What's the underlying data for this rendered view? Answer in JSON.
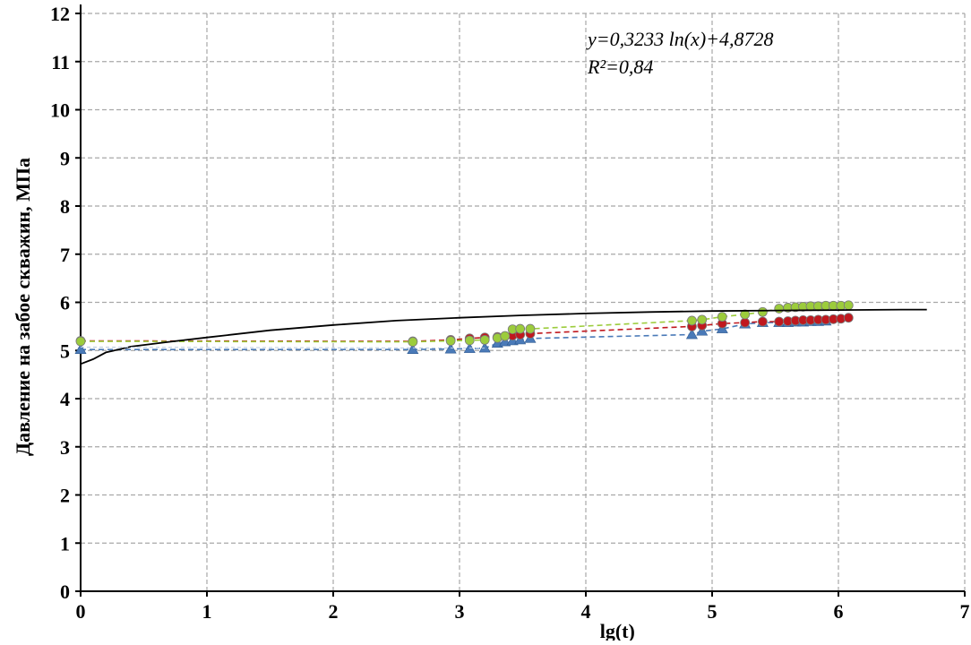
{
  "chart_data": {
    "type": "scatter",
    "xlabel": "lg(t)",
    "ylabel": "Давление на забое скважин, МПа",
    "xlim": [
      0,
      7
    ],
    "ylim": [
      0,
      12
    ],
    "x_ticks": [
      "0",
      "1",
      "2",
      "3",
      "4",
      "5",
      "6",
      "7"
    ],
    "y_ticks": [
      "0",
      "1",
      "2",
      "3",
      "4",
      "5",
      "6",
      "7",
      "8",
      "9",
      "10",
      "11",
      "12"
    ],
    "grid": true,
    "annotation": {
      "equation": "y=0,3233 ln(x)+4,8728",
      "r2": "R²=0,84"
    },
    "series": [
      {
        "marker": "triangle",
        "color": "#4a7ab8",
        "line": "dashed",
        "points": [
          [
            0.0,
            5.02
          ],
          [
            2.63,
            5.02
          ],
          [
            2.93,
            5.03
          ],
          [
            3.08,
            5.04
          ],
          [
            3.2,
            5.05
          ],
          [
            3.3,
            5.15
          ],
          [
            3.36,
            5.18
          ],
          [
            3.42,
            5.2
          ],
          [
            3.48,
            5.22
          ],
          [
            3.56,
            5.25
          ],
          [
            4.84,
            5.33
          ],
          [
            4.92,
            5.4
          ],
          [
            5.08,
            5.45
          ],
          [
            5.26,
            5.55
          ],
          [
            5.4,
            5.58
          ],
          [
            5.53,
            5.58
          ],
          [
            5.6,
            5.58
          ],
          [
            5.66,
            5.59
          ],
          [
            5.72,
            5.59
          ],
          [
            5.78,
            5.6
          ],
          [
            5.84,
            5.6
          ],
          [
            5.9,
            5.61
          ]
        ]
      },
      {
        "marker": "circle",
        "color": "#c0181e",
        "line": "dashed",
        "points": [
          [
            0.0,
            5.2
          ],
          [
            2.63,
            5.19
          ],
          [
            2.93,
            5.22
          ],
          [
            3.08,
            5.25
          ],
          [
            3.2,
            5.27
          ],
          [
            3.3,
            5.28
          ],
          [
            3.36,
            5.3
          ],
          [
            3.42,
            5.31
          ],
          [
            3.48,
            5.33
          ],
          [
            3.56,
            5.35
          ],
          [
            4.84,
            5.5
          ],
          [
            4.92,
            5.52
          ],
          [
            5.08,
            5.56
          ],
          [
            5.26,
            5.58
          ],
          [
            5.4,
            5.6
          ],
          [
            5.53,
            5.6
          ],
          [
            5.6,
            5.61
          ],
          [
            5.66,
            5.62
          ],
          [
            5.72,
            5.63
          ],
          [
            5.78,
            5.63
          ],
          [
            5.84,
            5.64
          ],
          [
            5.9,
            5.64
          ],
          [
            5.96,
            5.65
          ],
          [
            6.02,
            5.66
          ],
          [
            6.08,
            5.68
          ]
        ]
      },
      {
        "marker": "circle",
        "color": "#9ccc3c",
        "line": "dashed",
        "points": [
          [
            0.0,
            5.19
          ],
          [
            2.63,
            5.18
          ],
          [
            2.93,
            5.2
          ],
          [
            3.08,
            5.21
          ],
          [
            3.2,
            5.22
          ],
          [
            3.3,
            5.26
          ],
          [
            3.36,
            5.3
          ],
          [
            3.42,
            5.44
          ],
          [
            3.48,
            5.45
          ],
          [
            3.56,
            5.45
          ],
          [
            4.84,
            5.62
          ],
          [
            4.92,
            5.64
          ],
          [
            5.08,
            5.7
          ],
          [
            5.26,
            5.75
          ],
          [
            5.4,
            5.8
          ],
          [
            5.53,
            5.87
          ],
          [
            5.6,
            5.89
          ],
          [
            5.66,
            5.9
          ],
          [
            5.72,
            5.91
          ],
          [
            5.78,
            5.92
          ],
          [
            5.84,
            5.92
          ],
          [
            5.9,
            5.93
          ],
          [
            5.96,
            5.93
          ],
          [
            6.02,
            5.93
          ],
          [
            6.08,
            5.94
          ]
        ]
      },
      {
        "marker": "none",
        "color": "#000000",
        "line": "solid",
        "points": [
          [
            0.0,
            4.72
          ],
          [
            0.1,
            4.82
          ],
          [
            0.2,
            4.96
          ],
          [
            0.4,
            5.08
          ],
          [
            0.7,
            5.18
          ],
          [
            1.0,
            5.27
          ],
          [
            1.5,
            5.42
          ],
          [
            2.0,
            5.53
          ],
          [
            2.5,
            5.62
          ],
          [
            3.0,
            5.68
          ],
          [
            3.5,
            5.73
          ],
          [
            4.0,
            5.77
          ],
          [
            4.5,
            5.8
          ],
          [
            5.0,
            5.82
          ],
          [
            5.5,
            5.83
          ],
          [
            6.0,
            5.84
          ],
          [
            6.5,
            5.85
          ],
          [
            6.7,
            5.85
          ]
        ]
      },
      {
        "marker": "none",
        "color": "#b8c8e0",
        "line": "dashed-thin",
        "points": [
          [
            0.0,
            5.07
          ],
          [
            3.2,
            5.05
          ]
        ]
      }
    ]
  }
}
